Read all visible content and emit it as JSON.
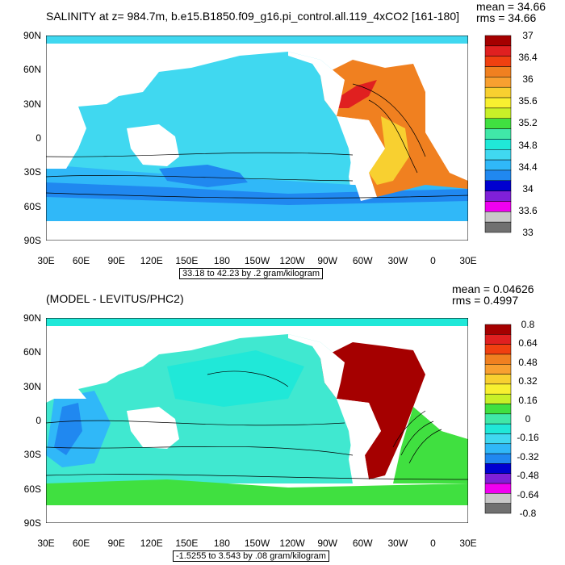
{
  "panel1": {
    "title": "SALINITY at z= 984.7m, b.e15.B1850.f09_g16.pi_control.all.119_4xCO2 [161-180]",
    "mean_label": "mean = 34.66",
    "rms_label": "rms = 34.66",
    "range_label": "33.18 to 42.23 by .2 gram/kilogram",
    "lat_labels": [
      "90N",
      "60N",
      "30N",
      "0",
      "30S",
      "60S",
      "90S"
    ],
    "lon_labels": [
      "30E",
      "60E",
      "90E",
      "120E",
      "150E",
      "180",
      "150W",
      "120W",
      "90W",
      "60W",
      "30W",
      "0",
      "30E"
    ],
    "colorbar": {
      "labels": [
        "37",
        "36.4",
        "36",
        "35.6",
        "35.2",
        "34.8",
        "34.4",
        "34",
        "33.6",
        "33"
      ],
      "colors": [
        "#a50000",
        "#e02020",
        "#f04010",
        "#f08020",
        "#f8a030",
        "#f8d030",
        "#f8f030",
        "#c8f028",
        "#40e040",
        "#40e8a8",
        "#20e8d8",
        "#40d8f0",
        "#30b8f8",
        "#2088f0",
        "#0000d0",
        "#8020d8",
        "#f000f0",
        "#c8c8c8",
        "#707070"
      ]
    },
    "fills": {
      "ocean_main": "#40d8f0",
      "ocean_south": "#30b8f8",
      "ocean_fresh": "#2088f0",
      "atlantic_salty": "#f08020",
      "atlantic_core": "#e02020",
      "atlantic_mid": "#f8d030",
      "arctic": "#40d8f0",
      "land": "#ffffff"
    }
  },
  "panel2": {
    "title": "(MODEL - LEVITUS/PHC2)",
    "mean_label": "mean = 0.04626",
    "rms_label": "rms = 0.4997",
    "range_label": "-1.5255 to 3.543 by .08 gram/kilogram",
    "lat_labels": [
      "90N",
      "60N",
      "30N",
      "0",
      "30S",
      "60S",
      "90S"
    ],
    "lon_labels": [
      "30E",
      "60E",
      "90E",
      "120E",
      "150E",
      "180",
      "150W",
      "120W",
      "90W",
      "60W",
      "30W",
      "0",
      "30E"
    ],
    "colorbar": {
      "labels": [
        "0.8",
        "0.64",
        "0.48",
        "0.32",
        "0.16",
        "0",
        "-0.16",
        "-0.32",
        "-0.48",
        "-0.64",
        "-0.8"
      ],
      "colors": [
        "#a50000",
        "#e02020",
        "#f04010",
        "#f08020",
        "#f8a030",
        "#f8d030",
        "#f8f030",
        "#c8f028",
        "#40e040",
        "#40e8a8",
        "#20e8d8",
        "#40d8f0",
        "#30b8f8",
        "#2088f0",
        "#0000d0",
        "#8020d8",
        "#f000f0",
        "#c8c8c8",
        "#707070"
      ]
    },
    "fills": {
      "ocean_main": "#40e8d0",
      "ocean_light": "#20e8d8",
      "ocean_blue": "#30b8f8",
      "southern": "#40e040",
      "atlantic_red": "#a50000",
      "atlantic_green": "#40e040",
      "indian_dark": "#2088f0",
      "land": "#ffffff"
    }
  }
}
